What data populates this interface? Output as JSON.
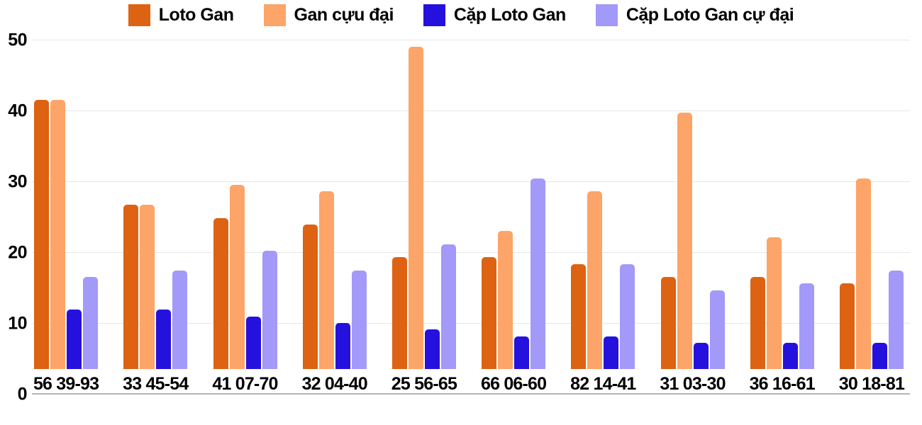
{
  "chart_data": {
    "type": "bar",
    "title": "",
    "xlabel": "",
    "ylabel": "",
    "ylim": [
      0,
      50
    ],
    "yticks": [
      0,
      10,
      20,
      30,
      40,
      50
    ],
    "grid": true,
    "legend_position": "top",
    "background": "#ffffff",
    "gridline_color": "#e7e7e7",
    "axis_line_color": "#b5b5b5",
    "categories": [
      "56 39-93",
      "33 45-54",
      "41 07-70",
      "32 04-40",
      "25 56-65",
      "66 06-60",
      "82 14-41",
      "31 03-30",
      "36 16-61",
      "30 18-81"
    ],
    "series": [
      {
        "name": "Loto Gan",
        "color": "#dd6212",
        "values": [
          41,
          25,
          23,
          22,
          17,
          17,
          16,
          14,
          14,
          13
        ]
      },
      {
        "name": "Gan cựu đại",
        "color": "#fda468",
        "values": [
          41,
          25,
          28,
          27,
          49,
          21,
          27,
          39,
          20,
          29
        ]
      },
      {
        "name": "Cặp Loto Gan",
        "color": "#2511de",
        "values": [
          9,
          9,
          8,
          7,
          6,
          5,
          5,
          4,
          4,
          4
        ]
      },
      {
        "name": "Cặp Loto Gan cự đại",
        "color": "#a299f8",
        "values": [
          14,
          15,
          18,
          15,
          19,
          29,
          16,
          12,
          13,
          15
        ]
      }
    ]
  }
}
